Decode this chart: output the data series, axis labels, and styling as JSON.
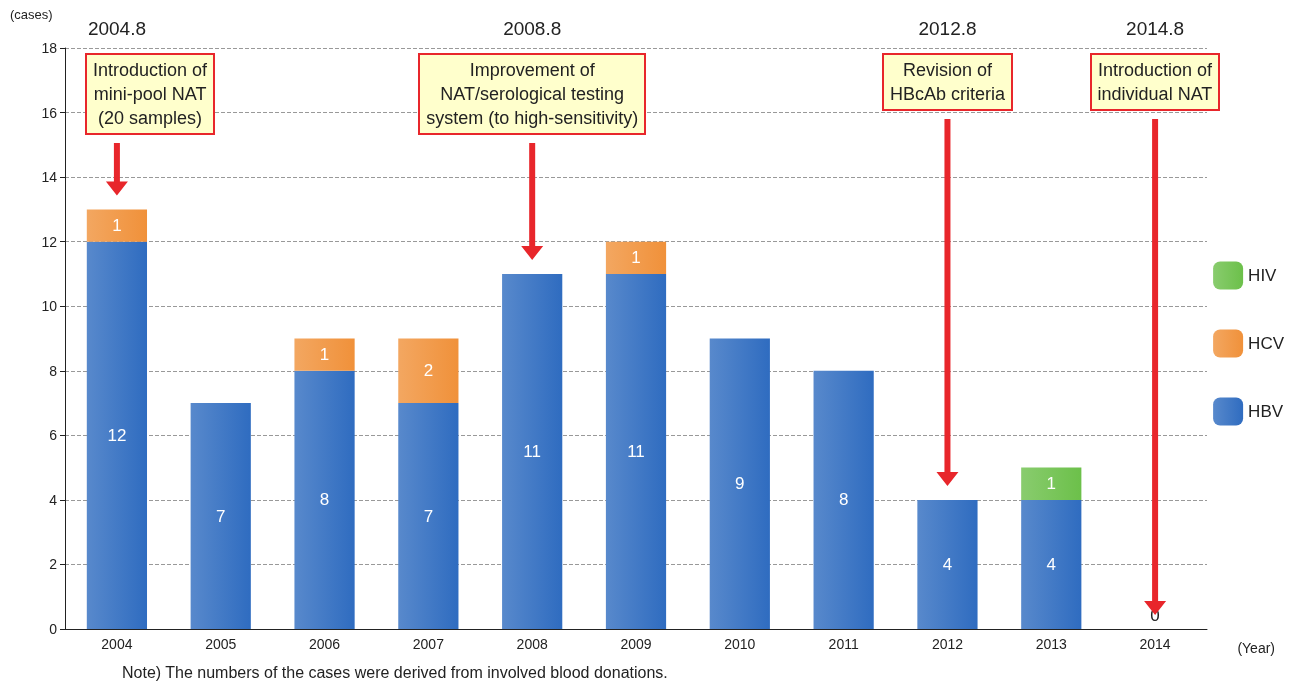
{
  "chart_data": {
    "type": "bar",
    "stacked": true,
    "ylabel": "(cases)",
    "xlabel": "(Year)",
    "categories": [
      "2004",
      "2005",
      "2006",
      "2007",
      "2008",
      "2009",
      "2010",
      "2011",
      "2012",
      "2013",
      "2014"
    ],
    "series": [
      {
        "name": "HBV",
        "color": "#2f6cc0",
        "values": [
          12,
          7,
          8,
          7,
          11,
          11,
          9,
          8,
          4,
          4,
          0
        ]
      },
      {
        "name": "HCV",
        "color": "#f0913a",
        "values": [
          1,
          null,
          1,
          2,
          null,
          1,
          null,
          null,
          null,
          null,
          null
        ]
      },
      {
        "name": "HIV",
        "color": "#6cc04a",
        "values": [
          null,
          null,
          null,
          null,
          null,
          null,
          null,
          null,
          null,
          1,
          null
        ]
      }
    ],
    "ylim": [
      0,
      18
    ],
    "yticks": [
      0,
      2,
      4,
      6,
      8,
      10,
      12,
      14,
      16,
      18
    ],
    "grid": "y",
    "legend": "right",
    "data_labels": true,
    "annotations": [
      "2004.8",
      "Introduction of\nmini-pool NAT\n(20 samples)",
      "2008.8",
      "Improvement of\nNAT/serological testing\nsystem (to high-sensitivity)",
      "2012.8",
      "Revision of\nHBcAb criteria",
      "2014.8",
      "Introduction of\nindividual NAT",
      "Note) The numbers of the cases were derived from involved blood donations."
    ]
  }
}
